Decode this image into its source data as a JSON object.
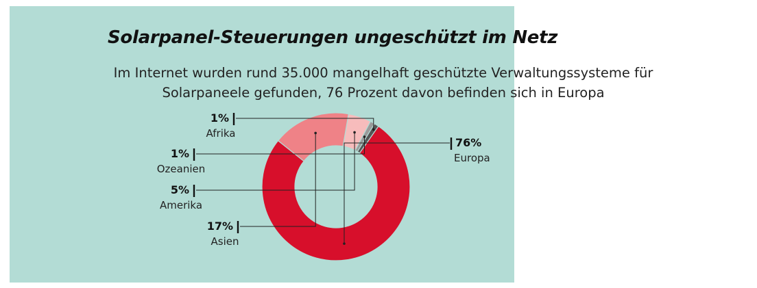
{
  "title": "Solarpanel-Steuerungen ungeschützt im Netz",
  "subtitle_line1": "Im Internet wurden rund 35.000 mangelhaft geschützte Verwaltungssysteme für",
  "subtitle_line2": "Solarpaneele gefunden, 76 Prozent davon befinden sich in Europa",
  "chart_data": {
    "type": "pie",
    "donut": true,
    "slices": [
      {
        "label": "Europa",
        "value": 76,
        "value_label": "76%",
        "color": "#d70f2b"
      },
      {
        "label": "Asien",
        "value": 17,
        "value_label": "17%",
        "color": "#ef8287"
      },
      {
        "label": "Amerika",
        "value": 5,
        "value_label": "5%",
        "color": "#f7bcbc"
      },
      {
        "label": "Ozeanien",
        "value": 1,
        "value_label": "1%",
        "color": "#9a9a9a"
      },
      {
        "label": "Afrika",
        "value": 1,
        "value_label": "1%",
        "color": "#555555"
      }
    ]
  }
}
